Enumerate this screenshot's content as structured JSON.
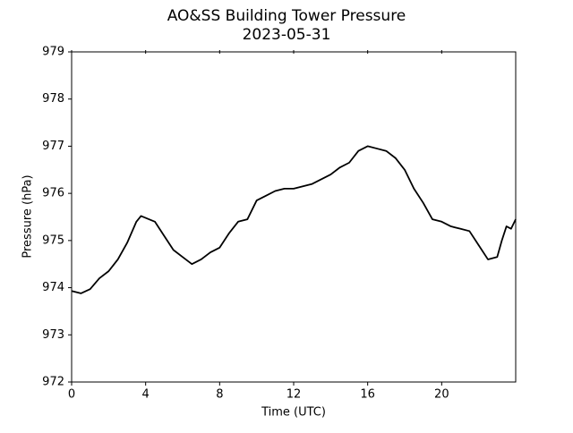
{
  "chart_data": {
    "type": "line",
    "title": "AO&SS Building Tower Pressure",
    "subtitle": "2023-05-31",
    "x_label": "Time (UTC)",
    "y_label": "Pressure (hPa)",
    "x": [
      0,
      0.5,
      1,
      1.5,
      2,
      2.5,
      3,
      3.5,
      3.75,
      4,
      4.5,
      5,
      5.5,
      6,
      6.5,
      7,
      7.5,
      8,
      8.5,
      9,
      9.5,
      10,
      10.5,
      11,
      11.5,
      12,
      12.5,
      13,
      13.5,
      14,
      14.5,
      15,
      15.5,
      16,
      16.5,
      17,
      17.5,
      18,
      18.5,
      19,
      19.5,
      20,
      20.5,
      21,
      21.5,
      22,
      22.5,
      23,
      23.25,
      23.5,
      23.75,
      24
    ],
    "values": [
      973.93,
      973.88,
      973.97,
      974.2,
      974.35,
      974.6,
      974.95,
      975.4,
      975.52,
      975.48,
      975.4,
      975.1,
      974.8,
      974.65,
      974.5,
      974.6,
      974.75,
      974.85,
      975.15,
      975.4,
      975.45,
      975.85,
      975.95,
      976.05,
      976.1,
      976.1,
      976.15,
      976.2,
      976.3,
      976.4,
      976.55,
      976.65,
      976.9,
      977.0,
      976.95,
      976.9,
      976.75,
      976.5,
      976.1,
      975.8,
      975.45,
      975.4,
      975.3,
      975.25,
      975.2,
      974.9,
      974.6,
      974.65,
      975.0,
      975.3,
      975.25,
      975.45
    ],
    "color": "#000000",
    "xlim": [
      0,
      24
    ],
    "ylim": [
      972,
      979
    ],
    "xticks": [
      0,
      4,
      8,
      12,
      16,
      20
    ],
    "yticks": [
      972,
      973,
      974,
      975,
      976,
      977,
      978,
      979
    ]
  }
}
